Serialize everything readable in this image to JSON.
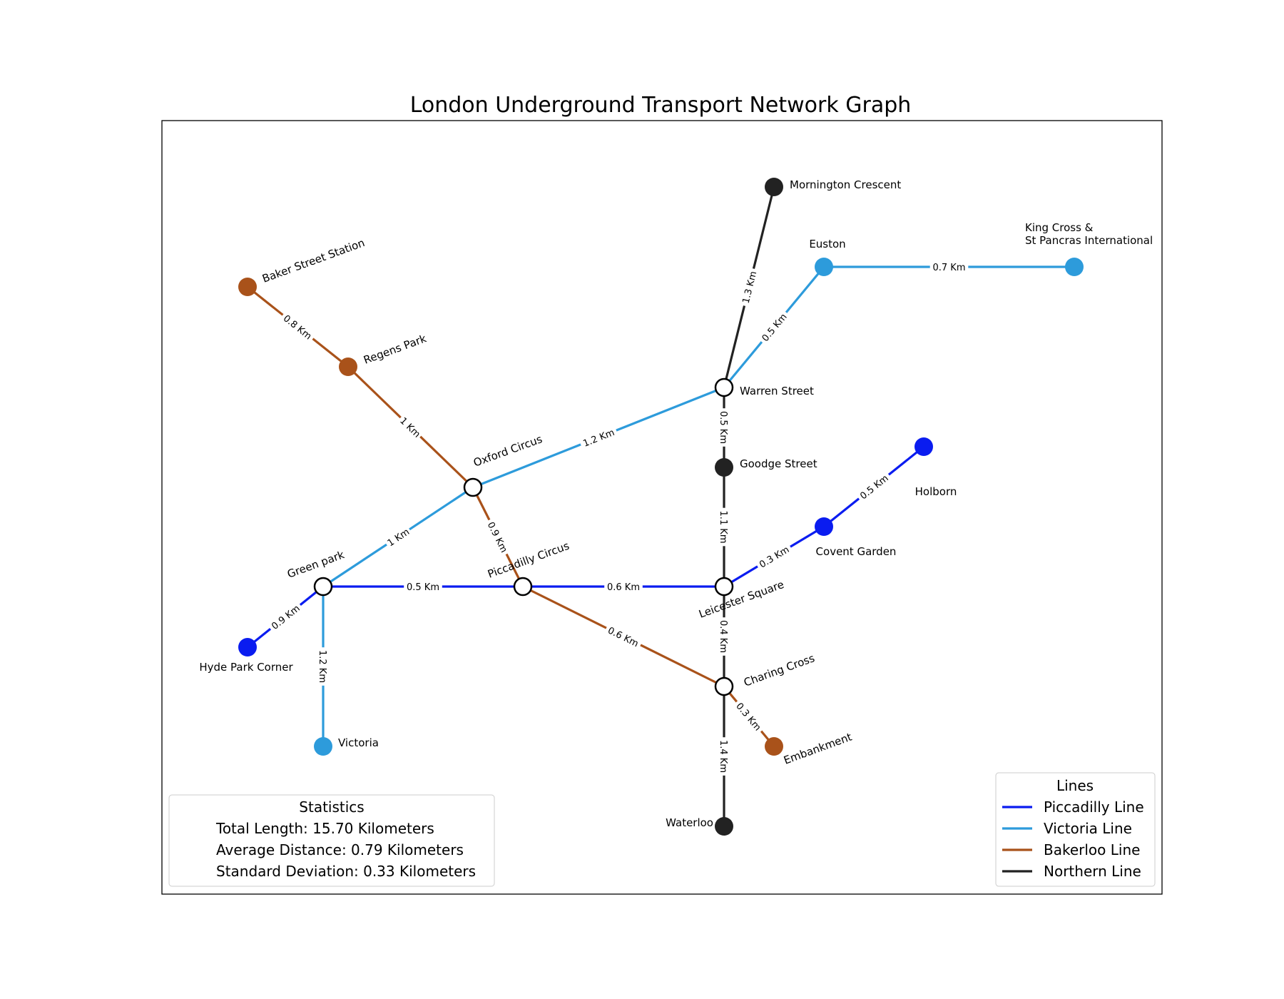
{
  "title": "London Underground Transport Network Graph",
  "colors": {
    "piccadilly": "#0a1cf0",
    "victoria": "#2d9bdb",
    "bakerloo": "#a9521a",
    "northern": "#222222"
  },
  "stations": [
    {
      "id": "baker",
      "name": "Baker Street Station",
      "line": "bakerloo",
      "hub": false
    },
    {
      "id": "regens",
      "name": "Regens Park",
      "line": "bakerloo",
      "hub": false
    },
    {
      "id": "oxford",
      "name": "Oxford Circus",
      "line": "victoria",
      "hub": true
    },
    {
      "id": "green",
      "name": "Green park",
      "line": "victoria",
      "hub": true
    },
    {
      "id": "hyde",
      "name": "Hyde Park Corner",
      "line": "piccadilly",
      "hub": false
    },
    {
      "id": "victoria",
      "name": "Victoria",
      "line": "victoria",
      "hub": false
    },
    {
      "id": "piccadilly",
      "name": "Piccadilly Circus",
      "line": "piccadilly",
      "hub": true
    },
    {
      "id": "leicester",
      "name": "Leicester Square",
      "line": "piccadilly",
      "hub": true
    },
    {
      "id": "charing",
      "name": "Charing Cross",
      "line": "northern",
      "hub": true
    },
    {
      "id": "embankment",
      "name": "Embankment",
      "line": "bakerloo",
      "hub": false
    },
    {
      "id": "waterloo",
      "name": "Waterloo",
      "line": "northern",
      "hub": false
    },
    {
      "id": "warren",
      "name": "Warren Street",
      "line": "victoria",
      "hub": true
    },
    {
      "id": "goodge",
      "name": "Goodge Street",
      "line": "northern",
      "hub": false
    },
    {
      "id": "mornington",
      "name": "Mornington Crescent",
      "line": "northern",
      "hub": false
    },
    {
      "id": "euston",
      "name": "Euston",
      "line": "victoria",
      "hub": false
    },
    {
      "id": "kingscross",
      "name": "King Cross &\nSt Pancras International",
      "line": "victoria",
      "hub": false
    },
    {
      "id": "covent",
      "name": "Covent Garden",
      "line": "piccadilly",
      "hub": false
    },
    {
      "id": "holborn",
      "name": "Holborn",
      "line": "piccadilly",
      "hub": false
    }
  ],
  "connections": [
    {
      "from": "baker",
      "to": "regens",
      "line": "bakerloo",
      "label": "0.8 Km",
      "km": 0.8
    },
    {
      "from": "regens",
      "to": "oxford",
      "line": "bakerloo",
      "label": "1 Km",
      "km": 1.0
    },
    {
      "from": "oxford",
      "to": "piccadilly",
      "line": "bakerloo",
      "label": "0.9 Km",
      "km": 0.9
    },
    {
      "from": "piccadilly",
      "to": "charing",
      "line": "bakerloo",
      "label": "0.6 Km",
      "km": 0.6
    },
    {
      "from": "charing",
      "to": "embankment",
      "line": "bakerloo",
      "label": "0.3 Km",
      "km": 0.3
    },
    {
      "from": "oxford",
      "to": "green",
      "line": "victoria",
      "label": "1 Km",
      "km": 1.0
    },
    {
      "from": "green",
      "to": "victoria",
      "line": "victoria",
      "label": "1.2 Km",
      "km": 1.2
    },
    {
      "from": "oxford",
      "to": "warren",
      "line": "victoria",
      "label": "1.2 Km",
      "km": 1.2
    },
    {
      "from": "warren",
      "to": "euston",
      "line": "victoria",
      "label": "0.5 Km",
      "km": 0.5
    },
    {
      "from": "euston",
      "to": "kingscross",
      "line": "victoria",
      "label": "0.7 Km",
      "km": 0.7
    },
    {
      "from": "hyde",
      "to": "green",
      "line": "piccadilly",
      "label": "0.9 Km",
      "km": 0.9
    },
    {
      "from": "green",
      "to": "piccadilly",
      "line": "piccadilly",
      "label": "0.5 Km",
      "km": 0.5
    },
    {
      "from": "piccadilly",
      "to": "leicester",
      "line": "piccadilly",
      "label": "0.6 Km",
      "km": 0.6
    },
    {
      "from": "leicester",
      "to": "covent",
      "line": "piccadilly",
      "label": "0.3 Km",
      "km": 0.3
    },
    {
      "from": "covent",
      "to": "holborn",
      "line": "piccadilly",
      "label": "0.5 Km",
      "km": 0.5
    },
    {
      "from": "mornington",
      "to": "warren",
      "line": "northern",
      "label": "1.3 Km",
      "km": 1.3
    },
    {
      "from": "warren",
      "to": "goodge",
      "line": "northern",
      "label": "0.5 Km",
      "km": 0.5
    },
    {
      "from": "goodge",
      "to": "leicester",
      "line": "northern",
      "label": "1.1 Km",
      "km": 1.1
    },
    {
      "from": "leicester",
      "to": "charing",
      "line": "northern",
      "label": "0.4 Km",
      "km": 0.4
    },
    {
      "from": "charing",
      "to": "waterloo",
      "line": "northern",
      "label": "1.4 Km",
      "km": 1.4
    }
  ],
  "statistics": {
    "title": "Statistics",
    "total": "Total Length: 15.70 Kilometers",
    "average": "Average Distance: 0.79 Kilometers",
    "stddev": "Standard Deviation: 0.33 Kilometers"
  },
  "legend": {
    "title": "Lines",
    "items": [
      {
        "label": "Piccadilly Line",
        "line": "piccadilly"
      },
      {
        "label": "Victoria Line",
        "line": "victoria"
      },
      {
        "label": "Bakerloo Line",
        "line": "bakerloo"
      },
      {
        "label": "Northern Line",
        "line": "northern"
      }
    ]
  }
}
